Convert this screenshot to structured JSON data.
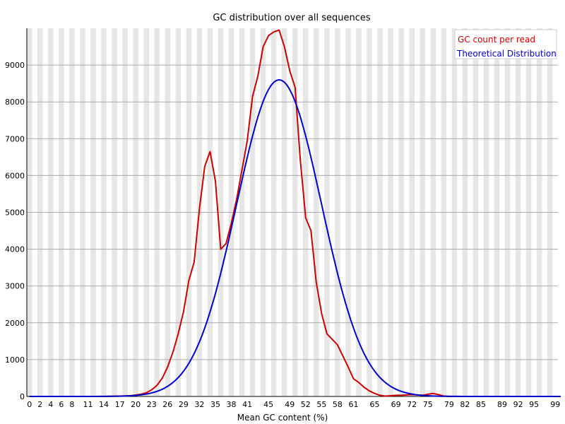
{
  "chart_data": {
    "type": "line",
    "title": "GC distribution over all sequences",
    "xlabel": "Mean GC content (%)",
    "ylabel": "",
    "xlim": [
      0,
      100
    ],
    "ylim": [
      0,
      10000
    ],
    "x_tick_labels": [
      "0",
      "2",
      "4",
      "6",
      "8",
      "11",
      "14",
      "17",
      "20",
      "23",
      "26",
      "29",
      "32",
      "35",
      "38",
      "41",
      "45",
      "49",
      "52",
      "55",
      "58",
      "61",
      "65",
      "69",
      "72",
      "75",
      "79",
      "82",
      "85",
      "89",
      "92",
      "95",
      "99"
    ],
    "y_ticks": [
      0,
      1000,
      2000,
      3000,
      4000,
      5000,
      6000,
      7000,
      8000,
      9000
    ],
    "grid": true,
    "legend_position": "top-right",
    "series": [
      {
        "name": "GC count per read",
        "color": "#cc0000",
        "points": [
          [
            0,
            0
          ],
          [
            14,
            0
          ],
          [
            17,
            10
          ],
          [
            19,
            20
          ],
          [
            21,
            60
          ],
          [
            22,
            100
          ],
          [
            23,
            180
          ],
          [
            24,
            300
          ],
          [
            25,
            500
          ],
          [
            26,
            800
          ],
          [
            27,
            1200
          ],
          [
            28,
            1700
          ],
          [
            29,
            2300
          ],
          [
            30,
            3150
          ],
          [
            31,
            3650
          ],
          [
            32,
            5100
          ],
          [
            33,
            6250
          ],
          [
            34,
            6650
          ],
          [
            35,
            5850
          ],
          [
            36,
            4000
          ],
          [
            37,
            4150
          ],
          [
            38,
            4700
          ],
          [
            39,
            5350
          ],
          [
            40,
            6150
          ],
          [
            41,
            6950
          ],
          [
            42,
            8150
          ],
          [
            43,
            8700
          ],
          [
            44,
            9500
          ],
          [
            45,
            9800
          ],
          [
            46,
            9900
          ],
          [
            47,
            9950
          ],
          [
            48,
            9500
          ],
          [
            49,
            8850
          ],
          [
            50,
            8400
          ],
          [
            51,
            6400
          ],
          [
            52,
            4850
          ],
          [
            53,
            4500
          ],
          [
            54,
            3100
          ],
          [
            55,
            2250
          ],
          [
            56,
            1700
          ],
          [
            57,
            1550
          ],
          [
            58,
            1400
          ],
          [
            59,
            1100
          ],
          [
            60,
            800
          ],
          [
            61,
            480
          ],
          [
            62,
            380
          ],
          [
            63,
            250
          ],
          [
            64,
            150
          ],
          [
            65,
            80
          ],
          [
            66,
            30
          ],
          [
            67,
            10
          ],
          [
            68,
            20
          ],
          [
            69,
            30
          ],
          [
            70,
            30
          ],
          [
            71,
            40
          ],
          [
            72,
            50
          ],
          [
            73,
            40
          ],
          [
            74,
            30
          ],
          [
            75,
            60
          ],
          [
            76,
            80
          ],
          [
            77,
            50
          ],
          [
            78,
            10
          ],
          [
            79,
            0
          ],
          [
            100,
            0
          ]
        ]
      },
      {
        "name": "Theoretical Distribution",
        "color": "#0000cc",
        "normal": {
          "mean": 47,
          "sd": 8,
          "peak": 8600
        }
      }
    ]
  }
}
